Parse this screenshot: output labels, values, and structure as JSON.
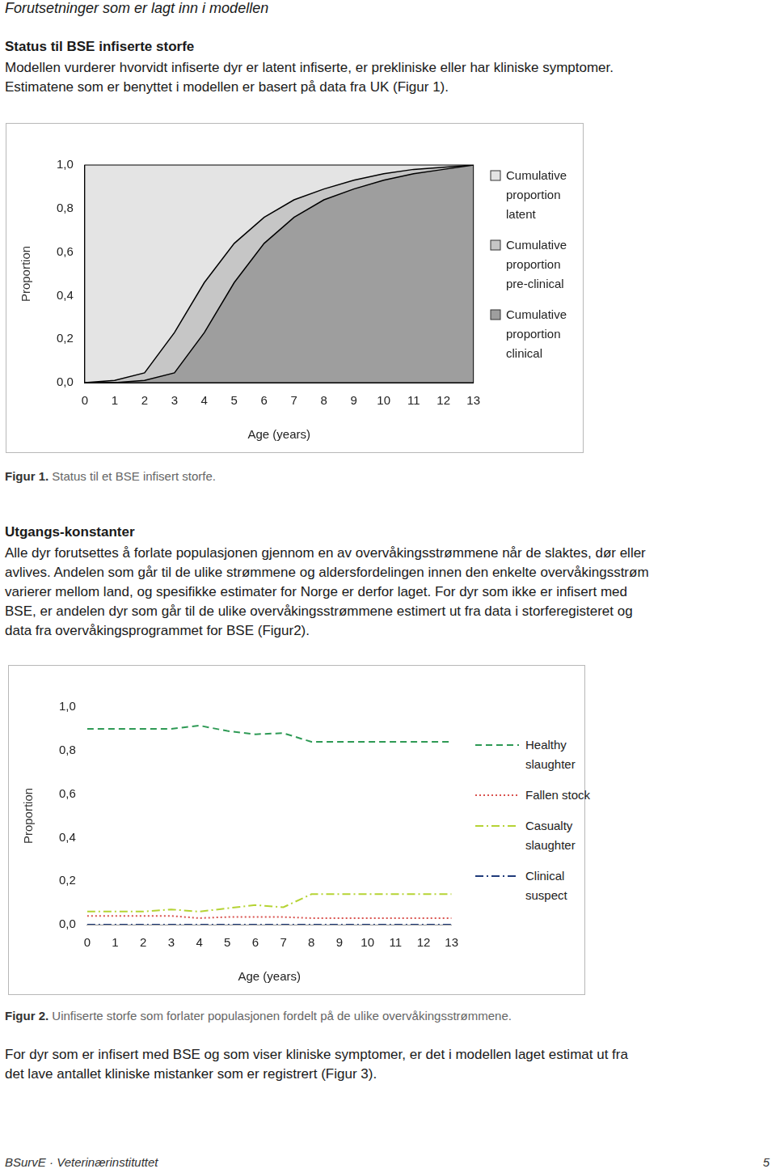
{
  "header": {
    "title": "Forutsetninger som er lagt inn i modellen"
  },
  "sections": [
    {
      "heading": "Status til BSE infiserte storfe",
      "lines": [
        "Modellen vurderer hvorvidt infiserte dyr er latent infiserte, er prekliniske eller har kliniske symptomer.",
        "Estimatene som er benyttet i modellen er basert på data fra UK (Figur 1)."
      ]
    },
    {
      "heading": "Utgangs-konstanter",
      "lines": [
        "Alle dyr forutsettes å forlate populasjonen gjennom en av overvåkingsstrømmene når de slaktes, dør eller",
        "avlives. Andelen som går til de ulike strømmene og aldersfordelingen innen den enkelte overvåkingsstrøm",
        "varierer mellom land, og spesifikke estimater for Norge er derfor laget. For dyr som ikke er infisert med",
        "BSE, er andelen dyr som går til de ulike overvåkingsstrømmene estimert ut fra data i storferegisteret og",
        "data fra overvåkingsprogrammet for BSE (Figur2)."
      ]
    }
  ],
  "figures": [
    {
      "label": "Figur 1.",
      "caption": "Status til et BSE infisert storfe."
    },
    {
      "label": "Figur 2.",
      "caption": "Uinfiserte storfe som forlater populasjonen fordelt på de ulike overvåkingsstrømmene."
    }
  ],
  "chart_data": [
    {
      "type": "area",
      "x_label": "Age (years)",
      "y_label": "Proportion",
      "x": [
        0,
        1,
        2,
        3,
        4,
        5,
        6,
        7,
        8,
        9,
        10,
        11,
        12,
        13
      ],
      "xlim": [
        0,
        13
      ],
      "xticks": [
        0,
        1,
        2,
        3,
        4,
        5,
        6,
        7,
        8,
        9,
        10,
        11,
        12,
        13
      ],
      "ylim": [
        0,
        1
      ],
      "yticks": [
        {
          "value": 0,
          "label": "0,0"
        },
        {
          "value": 0.2,
          "label": "0,2"
        },
        {
          "value": 0.4,
          "label": "0,4"
        },
        {
          "value": 0.6,
          "label": "0,6"
        },
        {
          "value": 0.8,
          "label": "0,8"
        },
        {
          "value": 1,
          "label": "1,0"
        }
      ],
      "grid": false,
      "stacked": false,
      "legend": "right",
      "series": [
        {
          "name": "Cumulative proportion latent",
          "color": "#e4e4e4",
          "values": [
            1,
            1,
            1,
            1,
            1,
            1,
            1,
            1,
            1,
            1,
            1,
            1,
            1,
            1
          ]
        },
        {
          "name": "Cumulative proportion pre-clinical",
          "color": "#c6c6c6",
          "values": [
            0,
            0.01,
            0.045,
            0.23,
            0.46,
            0.64,
            0.76,
            0.84,
            0.89,
            0.93,
            0.96,
            0.98,
            0.99,
            1
          ]
        },
        {
          "name": "Cumulative proportion clinical",
          "color": "#9e9e9e",
          "values": [
            0,
            0,
            0.01,
            0.045,
            0.23,
            0.46,
            0.64,
            0.76,
            0.84,
            0.89,
            0.93,
            0.96,
            0.98,
            1
          ]
        }
      ]
    },
    {
      "type": "line",
      "x_label": "Age (years)",
      "y_label": "Proportion",
      "x": [
        0,
        1,
        2,
        3,
        4,
        5,
        6,
        7,
        8,
        9,
        10,
        11,
        12,
        13
      ],
      "xlim": [
        0,
        13
      ],
      "xticks": [
        0,
        1,
        2,
        3,
        4,
        5,
        6,
        7,
        8,
        9,
        10,
        11,
        12,
        13
      ],
      "ylim": [
        0,
        1
      ],
      "yticks": [
        {
          "value": 0,
          "label": "0,0"
        },
        {
          "value": 0.2,
          "label": "0,2"
        },
        {
          "value": 0.4,
          "label": "0,4"
        },
        {
          "value": 0.6,
          "label": "0,6"
        },
        {
          "value": 0.8,
          "label": "0,8"
        },
        {
          "value": 1,
          "label": "1,0"
        }
      ],
      "grid": false,
      "legend": "right",
      "series": [
        {
          "name": "Healthy slaughter",
          "color": "#2e9a55",
          "line_style": "dashed",
          "values": [
            0.9,
            0.9,
            0.9,
            0.9,
            0.915,
            0.89,
            0.875,
            0.88,
            0.84,
            0.84,
            0.84,
            0.84,
            0.84,
            0.84
          ]
        },
        {
          "name": "Fallen stock",
          "color": "#d9534f",
          "line_style": "dotted",
          "values": [
            0.04,
            0.04,
            0.04,
            0.04,
            0.03,
            0.035,
            0.035,
            0.035,
            0.03,
            0.03,
            0.03,
            0.03,
            0.03,
            0.03
          ]
        },
        {
          "name": "Casualty slaughter",
          "color": "#b5d334",
          "line_style": "dashdot",
          "values": [
            0.06,
            0.06,
            0.06,
            0.07,
            0.06,
            0.075,
            0.09,
            0.08,
            0.14,
            0.14,
            0.14,
            0.14,
            0.14,
            0.14
          ]
        },
        {
          "name": "Clinical suspect",
          "color": "#1f3b7a",
          "line_style": "dashdot",
          "values": [
            0,
            0,
            0,
            0,
            0,
            0,
            0,
            0,
            0,
            0,
            0,
            0,
            0,
            0
          ]
        }
      ]
    }
  ],
  "closing": {
    "lines": [
      "For dyr som er infisert med BSE og som viser kliniske symptomer, er det i modellen laget estimat ut fra",
      "det lave antallet kliniske mistanker som er registrert (Figur 3)."
    ]
  },
  "footer": {
    "left": "BSurvE · Veterinærinstituttet",
    "page": "5"
  }
}
